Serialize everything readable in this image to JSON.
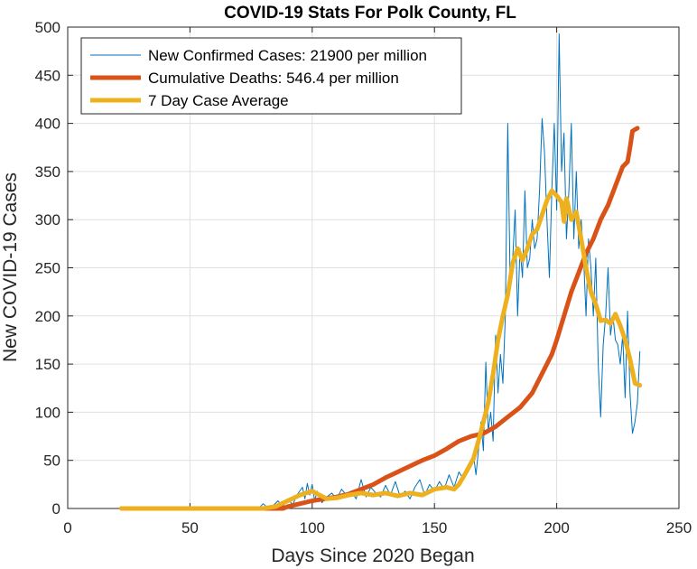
{
  "chart_data": {
    "type": "line",
    "title": "COVID-19 Stats For Polk County, FL",
    "xlabel": "Days Since 2020 Began",
    "ylabel": "New COVID-19 Cases",
    "xlim": [
      0,
      250
    ],
    "ylim": [
      0,
      500
    ],
    "xticks": [
      0,
      50,
      100,
      150,
      200,
      250
    ],
    "yticks": [
      0,
      50,
      100,
      150,
      200,
      250,
      300,
      350,
      400,
      450,
      500
    ],
    "grid": true,
    "legend_position": "top-left",
    "series": [
      {
        "name": "New Confirmed Cases: 21900 per million",
        "color": "#0072BD",
        "line_width": "thin",
        "points": [
          [
            22,
            0
          ],
          [
            30,
            0
          ],
          [
            40,
            0
          ],
          [
            50,
            0
          ],
          [
            60,
            0
          ],
          [
            70,
            0
          ],
          [
            78,
            0
          ],
          [
            80,
            5
          ],
          [
            82,
            0
          ],
          [
            84,
            3
          ],
          [
            86,
            8
          ],
          [
            88,
            2
          ],
          [
            90,
            10
          ],
          [
            92,
            4
          ],
          [
            94,
            15
          ],
          [
            96,
            22
          ],
          [
            97,
            10
          ],
          [
            98,
            26
          ],
          [
            99,
            14
          ],
          [
            100,
            25
          ],
          [
            101,
            8
          ],
          [
            102,
            18
          ],
          [
            104,
            6
          ],
          [
            106,
            12
          ],
          [
            108,
            16
          ],
          [
            110,
            10
          ],
          [
            112,
            20
          ],
          [
            114,
            14
          ],
          [
            116,
            18
          ],
          [
            118,
            10
          ],
          [
            120,
            30
          ],
          [
            122,
            12
          ],
          [
            124,
            22
          ],
          [
            126,
            16
          ],
          [
            128,
            12
          ],
          [
            130,
            24
          ],
          [
            132,
            14
          ],
          [
            134,
            28
          ],
          [
            136,
            12
          ],
          [
            138,
            18
          ],
          [
            140,
            10
          ],
          [
            142,
            22
          ],
          [
            144,
            30
          ],
          [
            146,
            14
          ],
          [
            148,
            25
          ],
          [
            150,
            18
          ],
          [
            152,
            28
          ],
          [
            154,
            20
          ],
          [
            156,
            35
          ],
          [
            158,
            22
          ],
          [
            160,
            38
          ],
          [
            162,
            30
          ],
          [
            164,
            45
          ],
          [
            166,
            55
          ],
          [
            167,
            35
          ],
          [
            168,
            60
          ],
          [
            169,
            90
          ],
          [
            170,
            60
          ],
          [
            171,
            152
          ],
          [
            172,
            80
          ],
          [
            173,
            100
          ],
          [
            174,
            70
          ],
          [
            175,
            180
          ],
          [
            176,
            120
          ],
          [
            177,
            160
          ],
          [
            178,
            130
          ],
          [
            179,
            200
          ],
          [
            180,
            400
          ],
          [
            181,
            230
          ],
          [
            182,
            260
          ],
          [
            183,
            310
          ],
          [
            184,
            200
          ],
          [
            185,
            270
          ],
          [
            186,
            240
          ],
          [
            187,
            330
          ],
          [
            188,
            250
          ],
          [
            189,
            260
          ],
          [
            190,
            300
          ],
          [
            191,
            270
          ],
          [
            192,
            280
          ],
          [
            193,
            330
          ],
          [
            194,
            405
          ],
          [
            195,
            370
          ],
          [
            196,
            300
          ],
          [
            197,
            240
          ],
          [
            198,
            330
          ],
          [
            199,
            400
          ],
          [
            200,
            310
          ],
          [
            201,
            493
          ],
          [
            202,
            350
          ],
          [
            203,
            390
          ],
          [
            204,
            280
          ],
          [
            205,
            330
          ],
          [
            206,
            400
          ],
          [
            207,
            280
          ],
          [
            208,
            350
          ],
          [
            209,
            270
          ],
          [
            210,
            300
          ],
          [
            211,
            260
          ],
          [
            212,
            200
          ],
          [
            213,
            280
          ],
          [
            214,
            250
          ],
          [
            215,
            200
          ],
          [
            216,
            260
          ],
          [
            217,
            150
          ],
          [
            218,
            95
          ],
          [
            219,
            170
          ],
          [
            220,
            200
          ],
          [
            221,
            250
          ],
          [
            222,
            180
          ],
          [
            223,
            200
          ],
          [
            224,
            175
          ],
          [
            225,
            170
          ],
          [
            226,
            150
          ],
          [
            227,
            180
          ],
          [
            228,
            115
          ],
          [
            229,
            205
          ],
          [
            230,
            120
          ],
          [
            231,
            78
          ],
          [
            232,
            90
          ],
          [
            233,
            110
          ],
          [
            234,
            163
          ]
        ]
      },
      {
        "name": "Cumulative Deaths: 546.4 per million",
        "color": "#D95319",
        "line_width": "thick",
        "points": [
          [
            22,
            0
          ],
          [
            40,
            0
          ],
          [
            60,
            0
          ],
          [
            80,
            0
          ],
          [
            88,
            0
          ],
          [
            90,
            2
          ],
          [
            95,
            5
          ],
          [
            100,
            8
          ],
          [
            105,
            10
          ],
          [
            110,
            12
          ],
          [
            115,
            15
          ],
          [
            120,
            20
          ],
          [
            125,
            25
          ],
          [
            130,
            32
          ],
          [
            135,
            38
          ],
          [
            140,
            44
          ],
          [
            145,
            50
          ],
          [
            150,
            55
          ],
          [
            155,
            62
          ],
          [
            160,
            70
          ],
          [
            165,
            75
          ],
          [
            170,
            78
          ],
          [
            175,
            85
          ],
          [
            180,
            95
          ],
          [
            185,
            105
          ],
          [
            190,
            120
          ],
          [
            195,
            145
          ],
          [
            198,
            160
          ],
          [
            200,
            175
          ],
          [
            203,
            200
          ],
          [
            206,
            225
          ],
          [
            209,
            245
          ],
          [
            212,
            265
          ],
          [
            215,
            280
          ],
          [
            218,
            300
          ],
          [
            221,
            315
          ],
          [
            224,
            335
          ],
          [
            227,
            355
          ],
          [
            229,
            360
          ],
          [
            230,
            375
          ],
          [
            231,
            392
          ],
          [
            233,
            395
          ]
        ]
      },
      {
        "name": "7 Day Case Average",
        "color": "#EDB120",
        "line_width": "thick",
        "points": [
          [
            22,
            0
          ],
          [
            40,
            0
          ],
          [
            60,
            0
          ],
          [
            80,
            0
          ],
          [
            85,
            2
          ],
          [
            90,
            8
          ],
          [
            95,
            14
          ],
          [
            100,
            18
          ],
          [
            103,
            14
          ],
          [
            106,
            10
          ],
          [
            110,
            11
          ],
          [
            115,
            14
          ],
          [
            120,
            16
          ],
          [
            125,
            14
          ],
          [
            130,
            16
          ],
          [
            135,
            13
          ],
          [
            140,
            16
          ],
          [
            145,
            14
          ],
          [
            150,
            20
          ],
          [
            155,
            22
          ],
          [
            158,
            20
          ],
          [
            160,
            25
          ],
          [
            163,
            38
          ],
          [
            166,
            52
          ],
          [
            168,
            70
          ],
          [
            170,
            90
          ],
          [
            172,
            110
          ],
          [
            174,
            140
          ],
          [
            176,
            175
          ],
          [
            178,
            200
          ],
          [
            180,
            222
          ],
          [
            182,
            255
          ],
          [
            184,
            270
          ],
          [
            186,
            258
          ],
          [
            188,
            270
          ],
          [
            190,
            285
          ],
          [
            192,
            290
          ],
          [
            194,
            305
          ],
          [
            196,
            320
          ],
          [
            198,
            330
          ],
          [
            200,
            325
          ],
          [
            202,
            318
          ],
          [
            203,
            298
          ],
          [
            204,
            322
          ],
          [
            206,
            300
          ],
          [
            208,
            308
          ],
          [
            210,
            280
          ],
          [
            212,
            250
          ],
          [
            214,
            225
          ],
          [
            216,
            212
          ],
          [
            218,
            195
          ],
          [
            220,
            196
          ],
          [
            222,
            192
          ],
          [
            224,
            202
          ],
          [
            226,
            190
          ],
          [
            228,
            175
          ],
          [
            230,
            155
          ],
          [
            232,
            130
          ],
          [
            234,
            128
          ]
        ]
      }
    ]
  }
}
